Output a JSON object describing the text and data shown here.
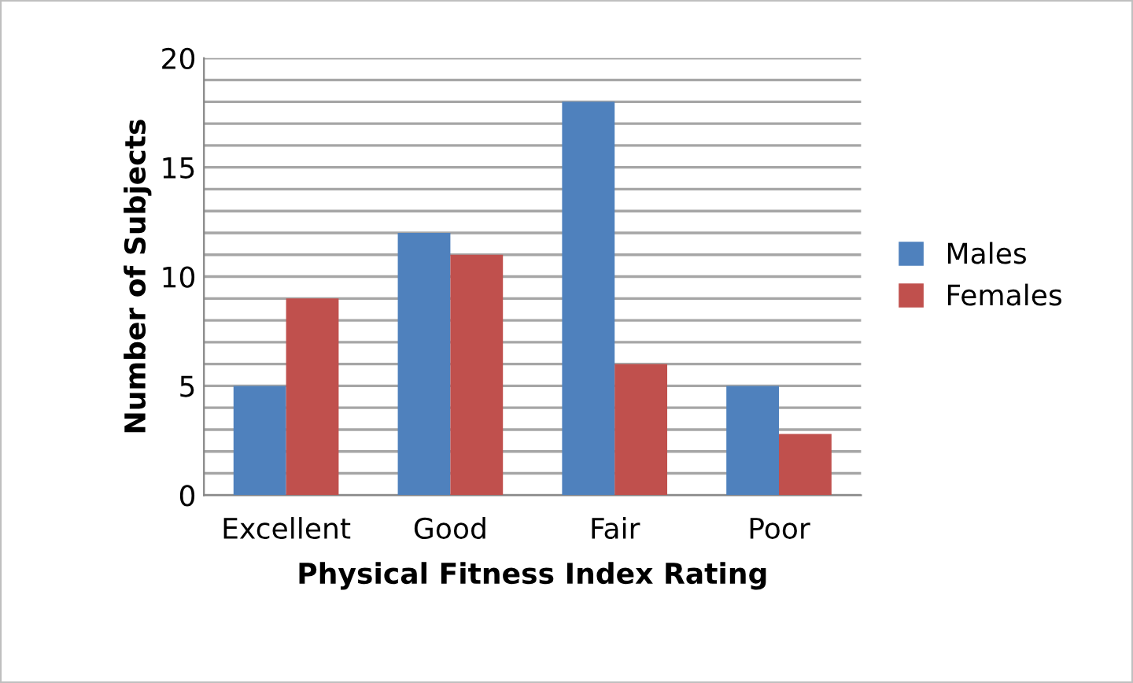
{
  "chart_data": {
    "type": "bar",
    "xlabel": "Physical Fitness Index Rating",
    "ylabel": "Number of Subjects",
    "categories": [
      "Excellent",
      "Good",
      "Fair",
      "Poor"
    ],
    "series": [
      {
        "name": "Males",
        "color": "#4f81bd",
        "values": [
          5,
          12,
          18,
          5
        ]
      },
      {
        "name": "Females",
        "color": "#c0504d",
        "values": [
          9,
          11,
          6,
          2.8
        ]
      }
    ],
    "ylim": [
      0,
      20
    ],
    "yticks": [
      0,
      {
        "value": 1,
        "label": null
      },
      {
        "value": 2,
        "label": null
      },
      {
        "value": 3,
        "label": null
      },
      {
        "value": 4,
        "label": null
      },
      5,
      {
        "value": 6,
        "label": null
      },
      {
        "value": 7,
        "label": null
      },
      {
        "value": 8,
        "label": null
      },
      {
        "value": 9,
        "label": null
      },
      10,
      {
        "value": 11,
        "label": null
      },
      {
        "value": 12,
        "label": null
      },
      {
        "value": 13,
        "label": null
      },
      {
        "value": 14,
        "label": null
      },
      15,
      {
        "value": 16,
        "label": null
      },
      {
        "value": 17,
        "label": null
      },
      {
        "value": 18,
        "label": null
      },
      {
        "value": 19,
        "label": null
      },
      20
    ],
    "grid": "y",
    "legend": "right"
  }
}
